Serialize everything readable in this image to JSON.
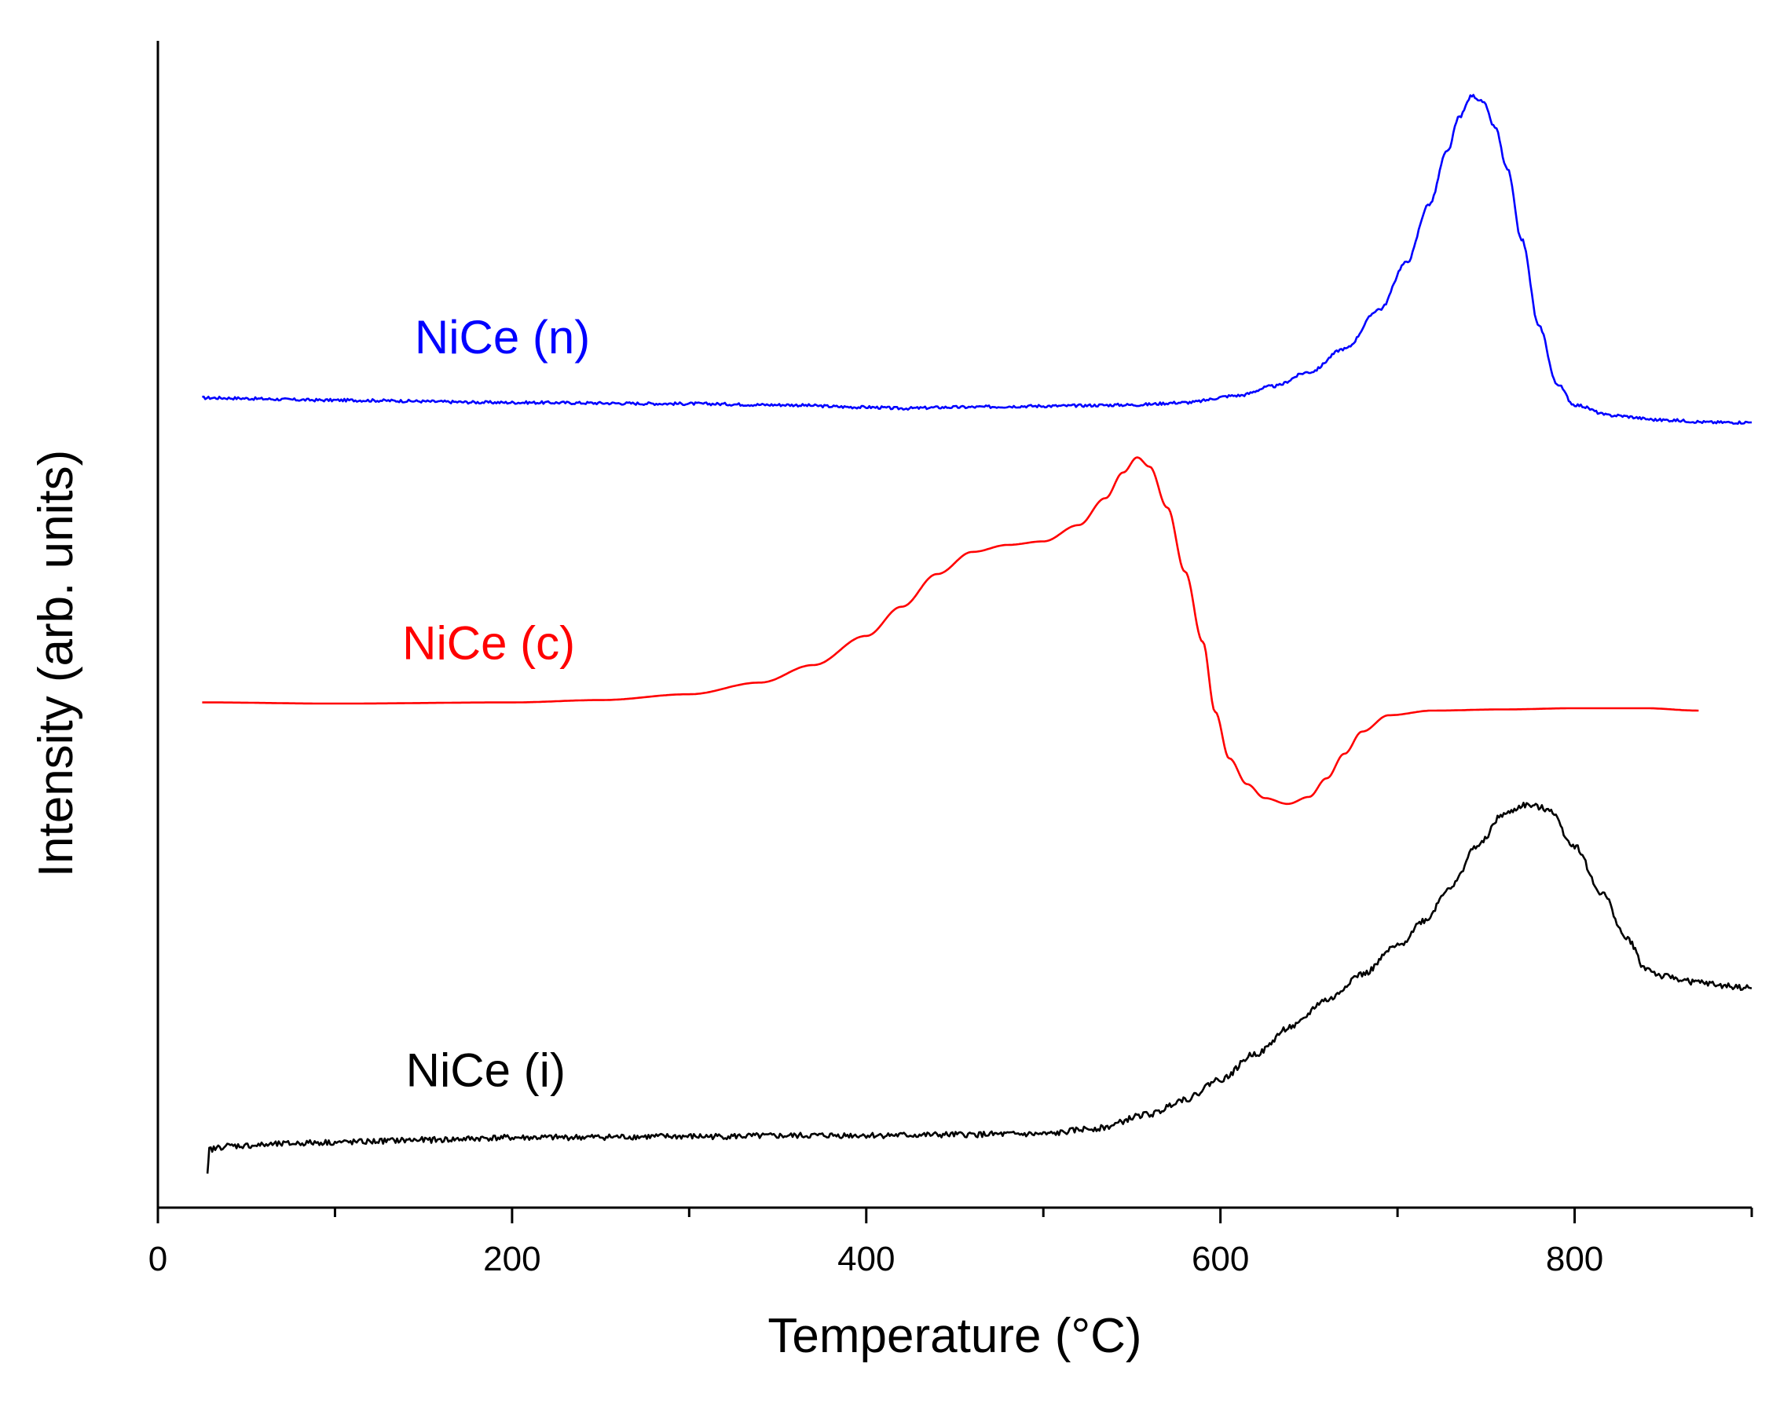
{
  "chart_data": {
    "type": "line",
    "title": "",
    "xlabel": "Temperature (°C)",
    "ylabel": "Intensity (arb. units)",
    "xlim": [
      0,
      900
    ],
    "ylim": [
      0,
      100
    ],
    "x_major_ticks": [
      0,
      200,
      400,
      600,
      800
    ],
    "x_minor_ticks": [
      100,
      300,
      500,
      700,
      900
    ],
    "y_tick_labels": false,
    "grid": false,
    "legend": "inline labels",
    "series": [
      {
        "name": "NiCe (n)",
        "color": "#0000ff",
        "noise": 0.12,
        "points": [
          [
            25,
            69.4
          ],
          [
            100,
            69.2
          ],
          [
            200,
            69.0
          ],
          [
            300,
            68.9
          ],
          [
            350,
            68.8
          ],
          [
            400,
            68.6
          ],
          [
            420,
            68.5
          ],
          [
            450,
            68.6
          ],
          [
            500,
            68.7
          ],
          [
            550,
            68.8
          ],
          [
            580,
            69.0
          ],
          [
            610,
            69.6
          ],
          [
            630,
            70.4
          ],
          [
            650,
            71.6
          ],
          [
            670,
            73.6
          ],
          [
            690,
            77.0
          ],
          [
            705,
            81.0
          ],
          [
            718,
            86.0
          ],
          [
            728,
            90.5
          ],
          [
            735,
            93.5
          ],
          [
            742,
            95.3
          ],
          [
            748,
            94.8
          ],
          [
            755,
            92.6
          ],
          [
            762,
            89.0
          ],
          [
            770,
            83.0
          ],
          [
            780,
            75.5
          ],
          [
            790,
            70.6
          ],
          [
            800,
            68.8
          ],
          [
            820,
            67.9
          ],
          [
            850,
            67.5
          ],
          [
            880,
            67.3
          ],
          [
            900,
            67.3
          ]
        ]
      },
      {
        "name": "NiCe (c)",
        "color": "#ff0000",
        "noise": 0.0,
        "points": [
          [
            25,
            43.3
          ],
          [
            100,
            43.2
          ],
          [
            200,
            43.3
          ],
          [
            250,
            43.5
          ],
          [
            300,
            44.0
          ],
          [
            340,
            45.0
          ],
          [
            370,
            46.5
          ],
          [
            400,
            49.0
          ],
          [
            420,
            51.5
          ],
          [
            440,
            54.3
          ],
          [
            460,
            56.2
          ],
          [
            480,
            56.8
          ],
          [
            500,
            57.1
          ],
          [
            520,
            58.5
          ],
          [
            535,
            60.8
          ],
          [
            545,
            63.0
          ],
          [
            553,
            64.3
          ],
          [
            560,
            63.5
          ],
          [
            570,
            60.0
          ],
          [
            580,
            54.5
          ],
          [
            590,
            48.5
          ],
          [
            597,
            42.5
          ],
          [
            605,
            38.5
          ],
          [
            615,
            36.3
          ],
          [
            625,
            35.1
          ],
          [
            638,
            34.6
          ],
          [
            650,
            35.2
          ],
          [
            660,
            36.8
          ],
          [
            670,
            38.9
          ],
          [
            680,
            40.8
          ],
          [
            695,
            42.2
          ],
          [
            720,
            42.6
          ],
          [
            760,
            42.7
          ],
          [
            800,
            42.8
          ],
          [
            840,
            42.8
          ],
          [
            870,
            42.6
          ]
        ]
      },
      {
        "name": "NiCe (i)",
        "color": "#000000",
        "noise": 0.25,
        "points": [
          [
            28,
            2.7
          ],
          [
            29,
            5.0
          ],
          [
            40,
            5.3
          ],
          [
            100,
            5.6
          ],
          [
            150,
            5.8
          ],
          [
            200,
            6.0
          ],
          [
            300,
            6.1
          ],
          [
            400,
            6.2
          ],
          [
            500,
            6.3
          ],
          [
            530,
            6.8
          ],
          [
            560,
            8.0
          ],
          [
            580,
            9.3
          ],
          [
            600,
            11.0
          ],
          [
            620,
            13.2
          ],
          [
            640,
            15.5
          ],
          [
            660,
            17.8
          ],
          [
            680,
            20.0
          ],
          [
            700,
            22.4
          ],
          [
            715,
            24.6
          ],
          [
            730,
            27.5
          ],
          [
            745,
            31.0
          ],
          [
            760,
            33.7
          ],
          [
            772,
            34.5
          ],
          [
            785,
            34.2
          ],
          [
            800,
            31.0
          ],
          [
            815,
            27.0
          ],
          [
            830,
            23.0
          ],
          [
            840,
            20.5
          ],
          [
            850,
            19.8
          ],
          [
            870,
            19.3
          ],
          [
            885,
            19.0
          ],
          [
            900,
            18.8
          ]
        ]
      }
    ],
    "annotations": [
      {
        "text": "NiCe (n)",
        "x": 145,
        "y": 73.2,
        "color": "#0000ff"
      },
      {
        "text": "NiCe (c)",
        "x": 138,
        "y": 47.0,
        "color": "#ff0000"
      },
      {
        "text": "NiCe (i)",
        "x": 140,
        "y": 10.4,
        "color": "#000000"
      }
    ]
  }
}
